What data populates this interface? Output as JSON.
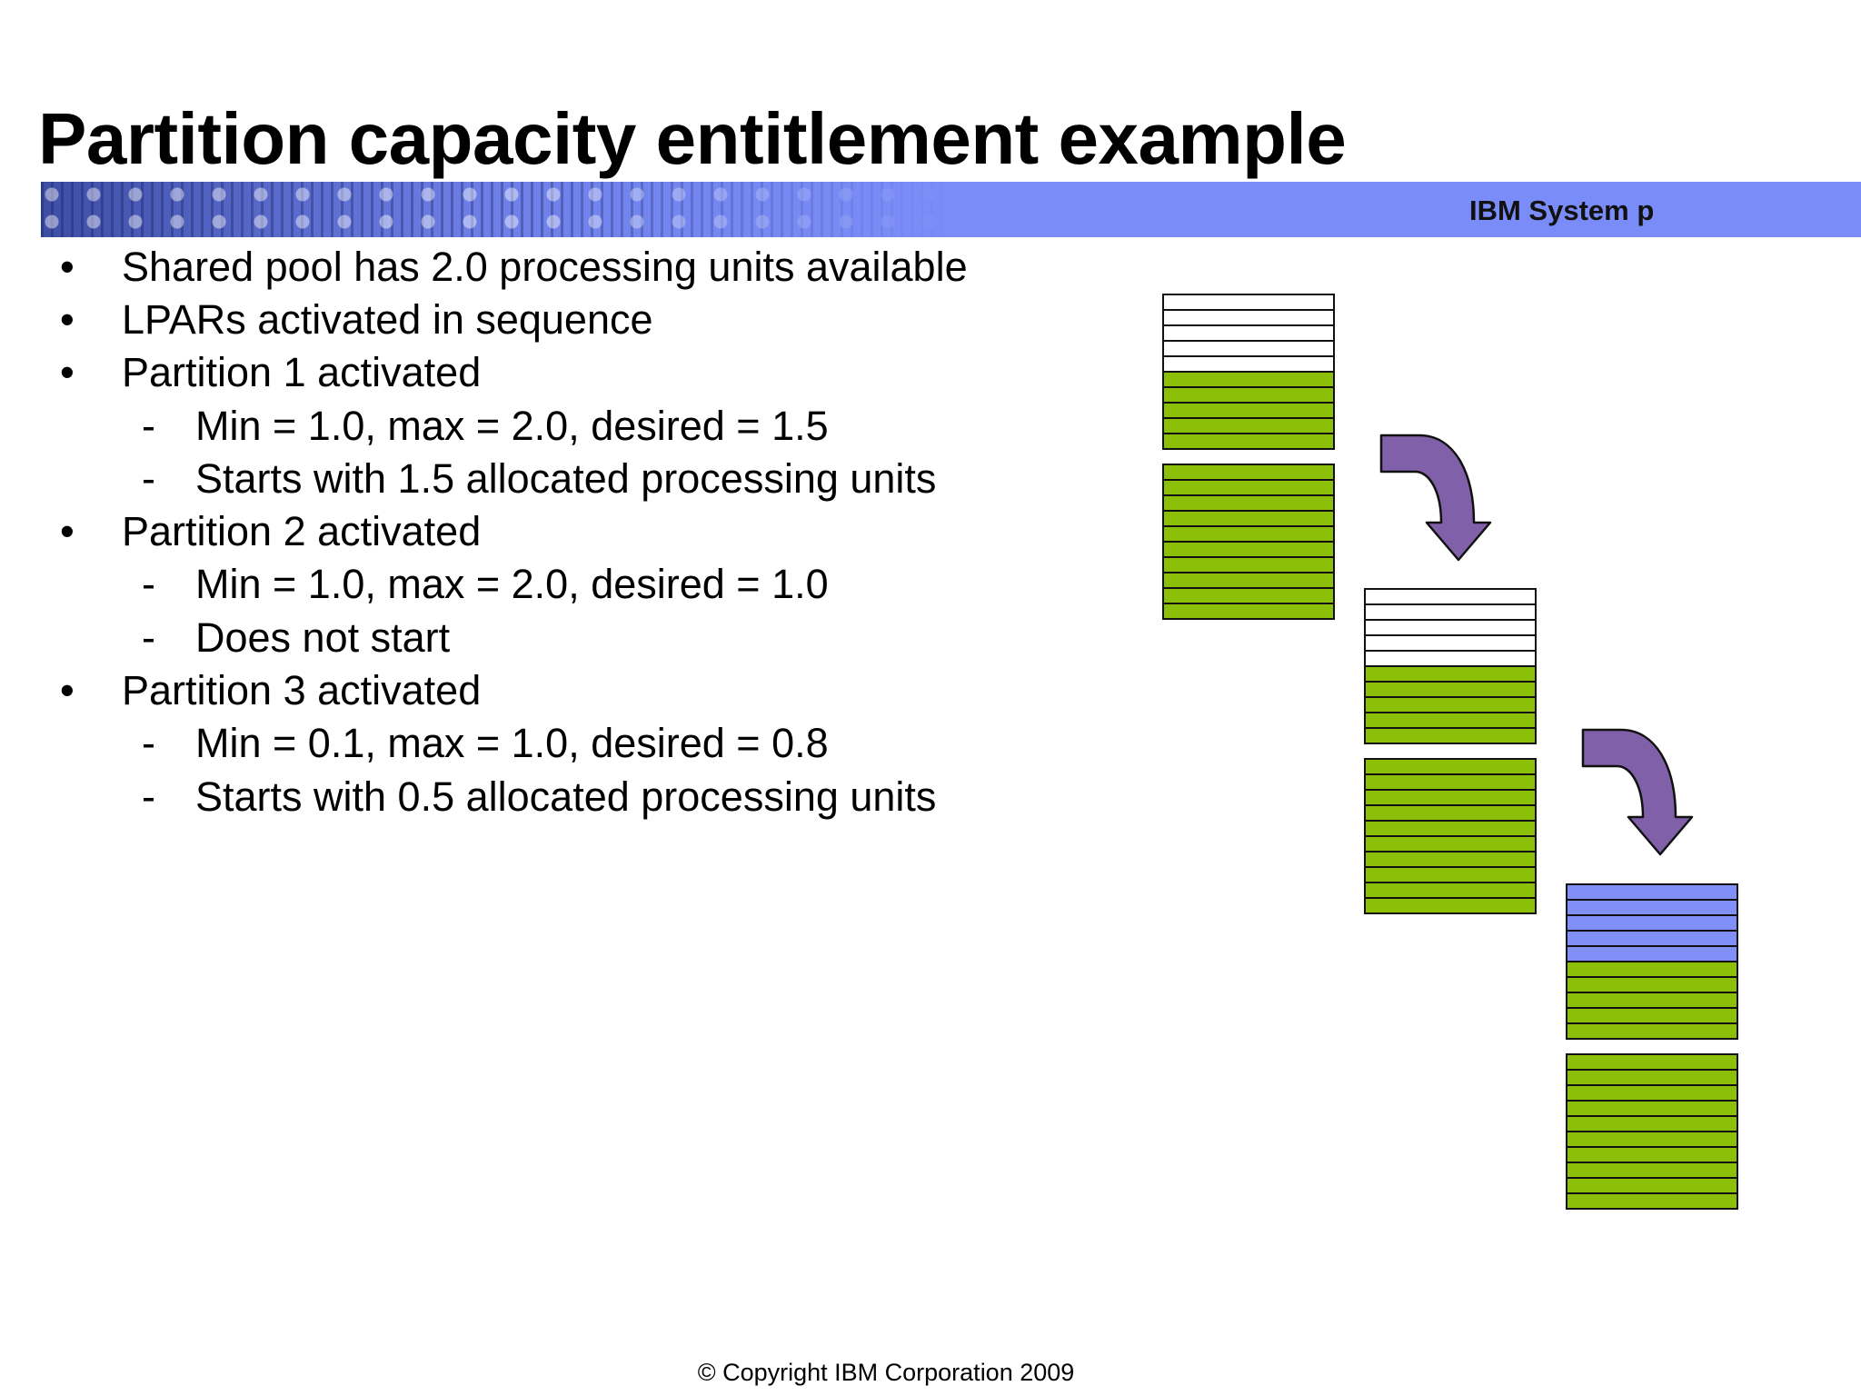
{
  "slide": {
    "title": "Partition capacity entitlement example",
    "brand": "IBM System p",
    "footer": "© Copyright IBM Corporation  2009"
  },
  "bullets": [
    {
      "level": 1,
      "marker": "•",
      "text": "Shared pool has 2.0 processing units available"
    },
    {
      "level": 1,
      "marker": "•",
      "text": "LPARs activated in sequence"
    },
    {
      "level": 1,
      "marker": "•",
      "text": "Partition 1 activated"
    },
    {
      "level": 2,
      "marker": "-",
      "text": "Min = 1.0, max = 2.0, desired = 1.5"
    },
    {
      "level": 2,
      "marker": "-",
      "text": "Starts with 1.5 allocated processing units"
    },
    {
      "level": 1,
      "marker": "•",
      "text": "Partition 2 activated"
    },
    {
      "level": 2,
      "marker": "-",
      "text": "Min = 1.0, max = 2.0, desired = 1.0"
    },
    {
      "level": 2,
      "marker": "-",
      "text": "Does not start"
    },
    {
      "level": 1,
      "marker": "•",
      "text": "Partition 3 activated"
    },
    {
      "level": 2,
      "marker": "-",
      "text": "Min = 0.1, max = 1.0, desired = 0.8"
    },
    {
      "level": 2,
      "marker": "-",
      "text": "Starts with 0.5 allocated processing units"
    }
  ],
  "diagram": {
    "colors": {
      "used": "#8cc008",
      "free": "#ffffff",
      "partition3": "#8090f8",
      "arrow": "#8060a8",
      "outline": "#111111"
    },
    "stages": [
      {
        "upper_block": [
          "free",
          "free",
          "free",
          "free",
          "free",
          "used",
          "used",
          "used",
          "used",
          "used"
        ],
        "lower_block": [
          "used",
          "used",
          "used",
          "used",
          "used",
          "used",
          "used",
          "used",
          "used",
          "used"
        ]
      },
      {
        "upper_block": [
          "free",
          "free",
          "free",
          "free",
          "free",
          "used",
          "used",
          "used",
          "used",
          "used"
        ],
        "lower_block": [
          "used",
          "used",
          "used",
          "used",
          "used",
          "used",
          "used",
          "used",
          "used",
          "used"
        ]
      },
      {
        "upper_block": [
          "partition3",
          "partition3",
          "partition3",
          "partition3",
          "partition3",
          "used",
          "used",
          "used",
          "used",
          "used"
        ],
        "lower_block": [
          "used",
          "used",
          "used",
          "used",
          "used",
          "used",
          "used",
          "used",
          "used",
          "used"
        ]
      }
    ],
    "arrows": [
      {
        "from_stage": 0,
        "to_stage": 1,
        "icon": "curved-down-arrow-icon"
      },
      {
        "from_stage": 1,
        "to_stage": 2,
        "icon": "curved-down-arrow-icon"
      }
    ]
  }
}
